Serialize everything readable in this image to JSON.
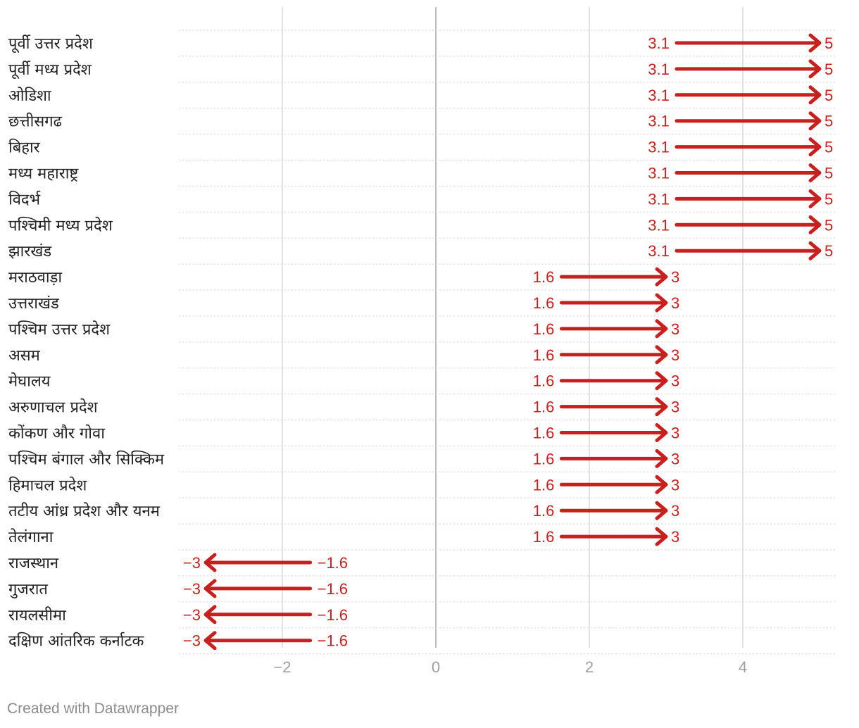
{
  "chart_data": {
    "type": "arrow",
    "title": "",
    "xlabel": "",
    "ylabel": "",
    "xlim": [
      -3.3,
      5.2
    ],
    "x_ticks": [
      -2,
      0,
      2,
      4
    ],
    "x_tick_labels": [
      "−2",
      "0",
      "2",
      "4"
    ],
    "color": "#c8201f",
    "grid": "vertical",
    "categories": [
      "पूर्वी उत्तर प्रदेश",
      "पूर्वी मध्य प्रदेश",
      "ओडिशा",
      "छत्तीसगढ",
      "बिहार",
      "मध्य महाराष्ट्र",
      "विदर्भ",
      "पश्चिमी मध्य प्रदेश",
      "झारखंड",
      "मराठवाड़ा",
      "उत्तराखंड",
      "पश्चिम उत्तर प्रदेश",
      "असम",
      "मेघालय",
      "अरुणाचल प्रदेश",
      "कोंकण और गोवा",
      "पश्चिम बंगाल और सिक्किम",
      "हिमाचल प्रदेश",
      "तटीय आंध्र प्रदेश और यनम",
      "तेलंगाना",
      "राजस्थान",
      "गुजरात",
      "रायलसीमा",
      "दक्षिण आंतरिक कर्नाटक"
    ],
    "start": [
      3.1,
      3.1,
      3.1,
      3.1,
      3.1,
      3.1,
      3.1,
      3.1,
      3.1,
      1.6,
      1.6,
      1.6,
      1.6,
      1.6,
      1.6,
      1.6,
      1.6,
      1.6,
      1.6,
      1.6,
      -1.6,
      -1.6,
      -1.6,
      -1.6
    ],
    "end": [
      5,
      5,
      5,
      5,
      5,
      5,
      5,
      5,
      5,
      3,
      3,
      3,
      3,
      3,
      3,
      3,
      3,
      3,
      3,
      3,
      -3,
      -3,
      -3,
      -3
    ],
    "start_labels": [
      "3.1",
      "3.1",
      "3.1",
      "3.1",
      "3.1",
      "3.1",
      "3.1",
      "3.1",
      "3.1",
      "1.6",
      "1.6",
      "1.6",
      "1.6",
      "1.6",
      "1.6",
      "1.6",
      "1.6",
      "1.6",
      "1.6",
      "1.6",
      "−1.6",
      "−1.6",
      "−1.6",
      "−1.6"
    ],
    "end_labels": [
      "5",
      "5",
      "5",
      "5",
      "5",
      "5",
      "5",
      "5",
      "5",
      "3",
      "3",
      "3",
      "3",
      "3",
      "3",
      "3",
      "3",
      "3",
      "3",
      "3",
      "−3",
      "−3",
      "−3",
      "−3"
    ]
  },
  "footer": "Created with Datawrapper"
}
